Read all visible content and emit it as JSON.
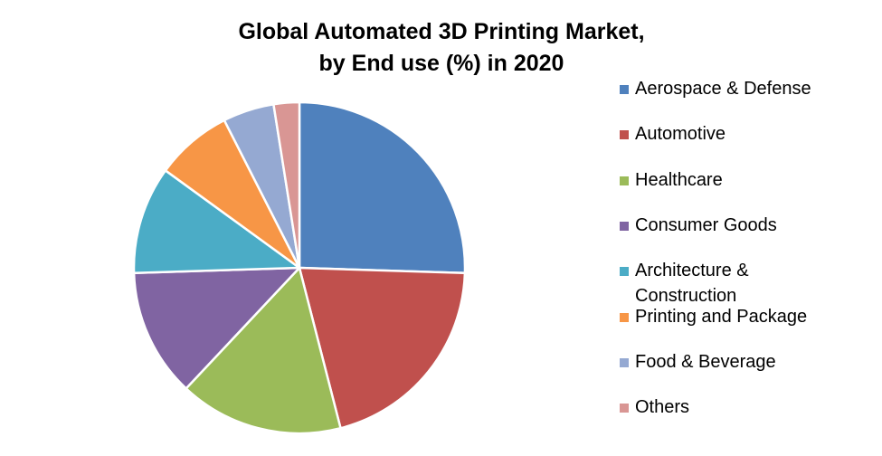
{
  "chart_data": {
    "type": "pie",
    "title": [
      "Global Automated 3D Printing Market,",
      "by End use (%) in 2020"
    ],
    "legend_position": "right",
    "categories": [
      "Aerospace & Defense",
      "Automotive",
      "Healthcare",
      "Consumer Goods",
      "Architecture & Construction",
      "Printing and Package",
      "Food & Beverage",
      "Others"
    ],
    "values": [
      25.5,
      20.5,
      16.0,
      12.5,
      10.5,
      7.5,
      5.0,
      2.5
    ],
    "colors": [
      "#4F81BD",
      "#C0504D",
      "#9BBB59",
      "#8064A2",
      "#4BACC6",
      "#F79646",
      "#95A9D2",
      "#D99694"
    ],
    "legend_labels": [
      [
        "Aerospace & Defense"
      ],
      [
        "Automotive"
      ],
      [
        "Healthcare"
      ],
      [
        "Consumer Goods"
      ],
      [
        "Architecture &",
        "Construction"
      ],
      [
        "Printing and Package"
      ],
      [
        "Food & Beverage"
      ],
      [
        "Others"
      ]
    ]
  }
}
